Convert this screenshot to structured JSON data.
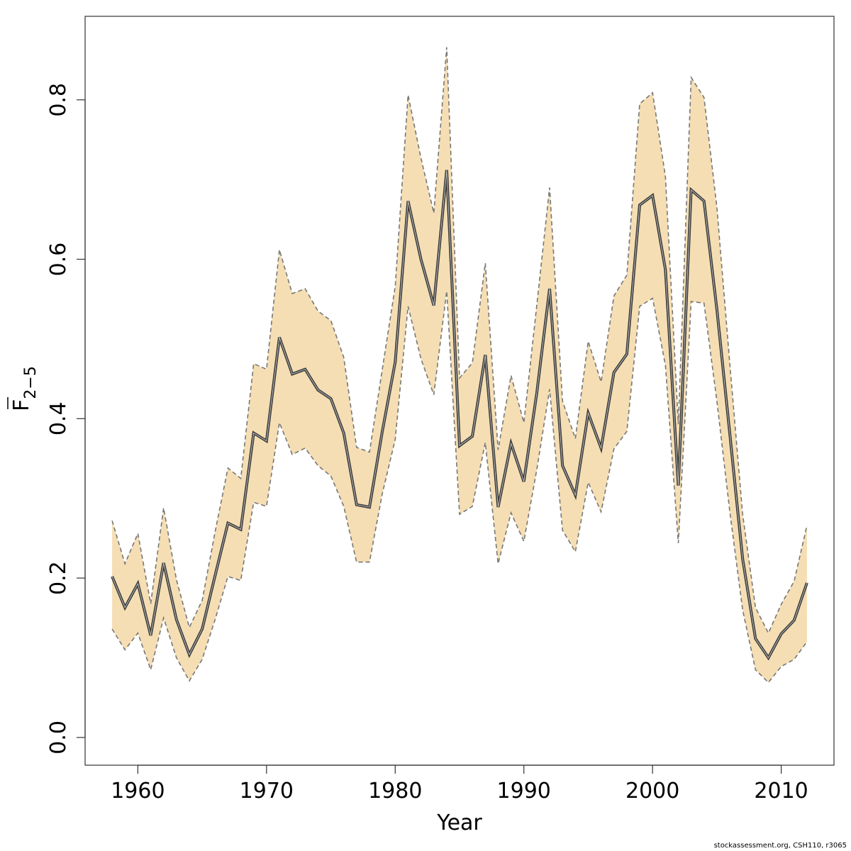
{
  "chart_data": {
    "type": "line",
    "xlabel": "Year",
    "ylabel_main": "F",
    "ylabel_sub": "2−5",
    "xlim": [
      1955.9,
      2014.1
    ],
    "ylim": [
      -0.0348,
      0.9048
    ],
    "xticks": [
      1960,
      1970,
      1980,
      1990,
      2000,
      2010
    ],
    "xtick_labels": [
      "1960",
      "1970",
      "1980",
      "1990",
      "2000",
      "2010"
    ],
    "yticks": [
      0.0,
      0.2,
      0.4,
      0.6,
      0.8
    ],
    "ytick_labels": [
      "0.0",
      "0.2",
      "0.4",
      "0.6",
      "0.8"
    ],
    "grid": false,
    "colors": {
      "band": "#F5DEB3",
      "bound": "#777777",
      "line": "#3a3a3a"
    },
    "x": [
      1958,
      1959,
      1960,
      1961,
      1962,
      1963,
      1964,
      1965,
      1966,
      1967,
      1968,
      1969,
      1970,
      1971,
      1972,
      1973,
      1974,
      1975,
      1976,
      1977,
      1978,
      1979,
      1980,
      1981,
      1982,
      1983,
      1984,
      1985,
      1986,
      1987,
      1988,
      1989,
      1990,
      1991,
      1992,
      1993,
      1994,
      1995,
      1996,
      1997,
      1998,
      1999,
      2000,
      2001,
      2002,
      2003,
      2004,
      2005,
      2006,
      2007,
      2008,
      2009,
      2010,
      2011,
      2012
    ],
    "series": [
      {
        "values": [
          0.202,
          0.163,
          0.193,
          0.128,
          0.219,
          0.148,
          0.104,
          0.136,
          0.203,
          0.269,
          0.261,
          0.382,
          0.372,
          0.502,
          0.456,
          0.462,
          0.436,
          0.425,
          0.382,
          0.292,
          0.289,
          0.384,
          0.471,
          0.673,
          0.6,
          0.542,
          0.712,
          0.366,
          0.378,
          0.48,
          0.289,
          0.369,
          0.321,
          0.432,
          0.563,
          0.341,
          0.304,
          0.407,
          0.363,
          0.458,
          0.481,
          0.668,
          0.68,
          0.587,
          0.316,
          0.687,
          0.673,
          0.537,
          0.382,
          0.224,
          0.124,
          0.1,
          0.13,
          0.147,
          0.194
        ]
      },
      {
        "values": [
          0.272,
          0.218,
          0.256,
          0.168,
          0.288,
          0.198,
          0.138,
          0.172,
          0.258,
          0.338,
          0.325,
          0.469,
          0.462,
          0.612,
          0.557,
          0.563,
          0.535,
          0.523,
          0.477,
          0.364,
          0.358,
          0.462,
          0.566,
          0.806,
          0.727,
          0.658,
          0.866,
          0.451,
          0.47,
          0.595,
          0.361,
          0.454,
          0.395,
          0.542,
          0.69,
          0.422,
          0.375,
          0.497,
          0.446,
          0.554,
          0.58,
          0.795,
          0.809,
          0.704,
          0.393,
          0.828,
          0.803,
          0.665,
          0.47,
          0.28,
          0.163,
          0.131,
          0.167,
          0.196,
          0.266
        ]
      },
      {
        "values": [
          0.136,
          0.11,
          0.131,
          0.085,
          0.15,
          0.1,
          0.071,
          0.098,
          0.148,
          0.202,
          0.197,
          0.295,
          0.29,
          0.395,
          0.355,
          0.363,
          0.341,
          0.328,
          0.29,
          0.22,
          0.22,
          0.306,
          0.374,
          0.541,
          0.475,
          0.43,
          0.56,
          0.28,
          0.29,
          0.37,
          0.218,
          0.282,
          0.246,
          0.336,
          0.437,
          0.26,
          0.233,
          0.32,
          0.283,
          0.362,
          0.384,
          0.541,
          0.551,
          0.467,
          0.244,
          0.547,
          0.545,
          0.422,
          0.284,
          0.16,
          0.085,
          0.069,
          0.089,
          0.098,
          0.12
        ]
      }
    ]
  },
  "footer": "stockassessment.org, CSH110, r3065"
}
